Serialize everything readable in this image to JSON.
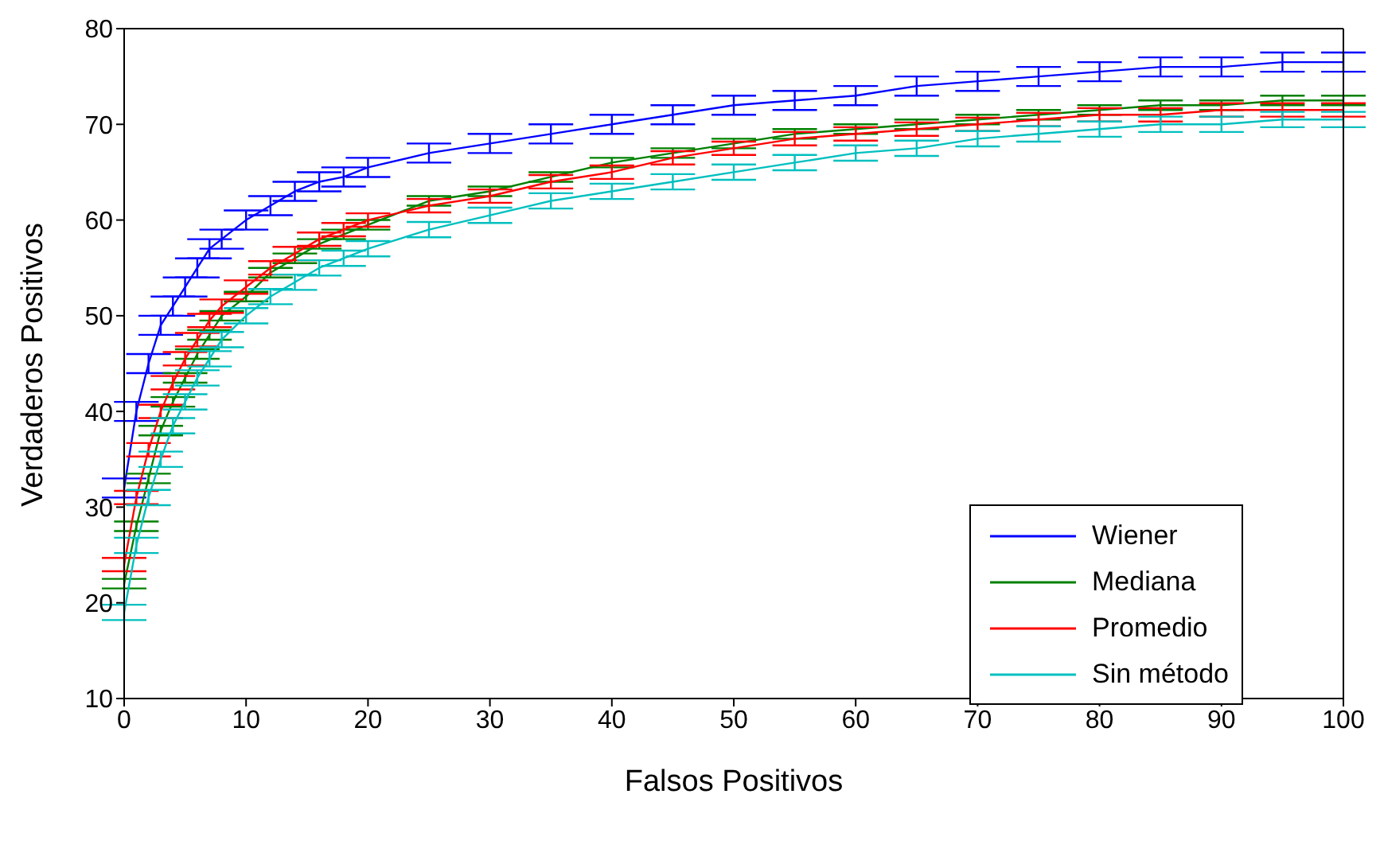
{
  "chart_data": {
    "type": "line",
    "xlabel": "Falsos Positivos",
    "ylabel": "Verdaderos Positivos",
    "x": [
      0,
      1,
      2,
      3,
      4,
      5,
      6,
      7,
      8,
      10,
      12,
      14,
      16,
      18,
      20,
      25,
      30,
      35,
      40,
      45,
      50,
      55,
      60,
      65,
      70,
      75,
      80,
      85,
      90,
      95,
      100
    ],
    "xlim": [
      0,
      100
    ],
    "xticks": [
      0,
      10,
      20,
      30,
      40,
      50,
      60,
      70,
      80,
      90,
      100
    ],
    "ylim": [
      10,
      80
    ],
    "yticks": [
      10,
      20,
      30,
      40,
      50,
      60,
      70,
      80
    ],
    "grid": false,
    "legend": "bottom right",
    "marker": "none",
    "line_style": "solid",
    "series": [
      {
        "name": "Wiener",
        "color": "#0000ff",
        "values": [
          32,
          40,
          45,
          49,
          51,
          53,
          55,
          57,
          58,
          60,
          61.5,
          63,
          64,
          64.5,
          65.5,
          67,
          68,
          69,
          70,
          71,
          72,
          72.5,
          73,
          74,
          74.5,
          75,
          75.5,
          76,
          76,
          76.5,
          76.5
        ],
        "errors": [
          1,
          1,
          1,
          1,
          1,
          1,
          1,
          1,
          1,
          1,
          1,
          1,
          1,
          1,
          1,
          1,
          1,
          1,
          1,
          1,
          1,
          1,
          1,
          1,
          1,
          1,
          1,
          1,
          1,
          1,
          1
        ]
      },
      {
        "name": "Mediana",
        "color": "#008000",
        "values": [
          22,
          28,
          33,
          38,
          41,
          43.5,
          46,
          48,
          50,
          52,
          54.5,
          56,
          57.5,
          58.5,
          59.5,
          62,
          63,
          64.5,
          66,
          67,
          68,
          69,
          69.5,
          70,
          70.5,
          71,
          71.5,
          72,
          72,
          72.5,
          72.5
        ],
        "errors": [
          0.5,
          0.5,
          0.5,
          0.5,
          0.5,
          0.5,
          0.5,
          0.5,
          0.5,
          0.5,
          0.5,
          0.5,
          0.5,
          0.5,
          0.5,
          0.5,
          0.5,
          0.5,
          0.5,
          0.5,
          0.5,
          0.5,
          0.5,
          0.5,
          0.5,
          0.5,
          0.5,
          0.5,
          0.5,
          0.5,
          0.5
        ]
      },
      {
        "name": "Promedio",
        "color": "#ff0000",
        "values": [
          24,
          31,
          36,
          40,
          43,
          45.5,
          47.5,
          49.5,
          51,
          53,
          55,
          56.5,
          58,
          59,
          60,
          61.5,
          62.5,
          64,
          65,
          66.5,
          67.5,
          68.5,
          69,
          69.5,
          70,
          70.5,
          71,
          71,
          71.5,
          71.5,
          71.5
        ],
        "errors": [
          0.7,
          0.7,
          0.7,
          0.7,
          0.7,
          0.7,
          0.7,
          0.7,
          0.7,
          0.7,
          0.7,
          0.7,
          0.7,
          0.7,
          0.7,
          0.7,
          0.7,
          0.7,
          0.7,
          0.7,
          0.7,
          0.7,
          0.7,
          0.7,
          0.7,
          0.7,
          0.7,
          0.7,
          0.7,
          0.7,
          0.7
        ]
      },
      {
        "name": "Sin método",
        "color": "#00bfbf",
        "values": [
          19,
          26,
          31,
          35,
          38.5,
          41,
          43.5,
          45.5,
          47.5,
          50,
          52,
          53.5,
          55,
          56,
          57,
          59,
          60.5,
          62,
          63,
          64,
          65,
          66,
          67,
          67.5,
          68.5,
          69,
          69.5,
          70,
          70,
          70.5,
          70.5
        ],
        "errors": [
          0.8,
          0.8,
          0.8,
          0.8,
          0.8,
          0.8,
          0.8,
          0.8,
          0.8,
          0.8,
          0.8,
          0.8,
          0.8,
          0.8,
          0.8,
          0.8,
          0.8,
          0.8,
          0.8,
          0.8,
          0.8,
          0.8,
          0.8,
          0.8,
          0.8,
          0.8,
          0.8,
          0.8,
          0.8,
          0.8,
          0.8
        ]
      }
    ]
  }
}
